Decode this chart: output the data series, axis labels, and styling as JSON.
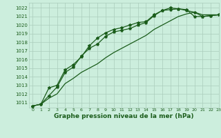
{
  "title": "Graphe pression niveau de la mer (hPa)",
  "bg_color": "#cceedd",
  "grid_color": "#aaccbb",
  "line_color": "#1a5c1a",
  "xlim": [
    -0.5,
    23
  ],
  "ylim": [
    1010.4,
    1022.6
  ],
  "xticks": [
    0,
    1,
    2,
    3,
    4,
    5,
    6,
    7,
    8,
    9,
    10,
    11,
    12,
    13,
    14,
    15,
    16,
    17,
    18,
    19,
    20,
    21,
    22,
    23
  ],
  "yticks": [
    1011,
    1012,
    1013,
    1014,
    1015,
    1016,
    1017,
    1018,
    1019,
    1020,
    1021,
    1022
  ],
  "series1_x": [
    0,
    1,
    2,
    3,
    4,
    5,
    6,
    7,
    8,
    9,
    10,
    11,
    12,
    13,
    14,
    15,
    16,
    17,
    18,
    19,
    20,
    21,
    22,
    23
  ],
  "series1_y": [
    1010.6,
    1010.8,
    1011.8,
    1012.8,
    1014.5,
    1015.1,
    1016.4,
    1017.3,
    1017.8,
    1018.7,
    1019.2,
    1019.4,
    1019.6,
    1020.0,
    1020.3,
    1021.1,
    1021.7,
    1021.8,
    1021.9,
    1021.8,
    1021.0,
    1021.0,
    1021.1,
    1021.2
  ],
  "series2_x": [
    0,
    1,
    2,
    3,
    4,
    5,
    6,
    7,
    8,
    9,
    10,
    11,
    12,
    13,
    14,
    15,
    16,
    17,
    18,
    19,
    20,
    21,
    22,
    23
  ],
  "series2_y": [
    1010.6,
    1010.8,
    1012.7,
    1013.0,
    1014.8,
    1015.4,
    1016.3,
    1017.6,
    1018.5,
    1019.1,
    1019.5,
    1019.7,
    1020.0,
    1020.3,
    1020.4,
    1021.2,
    1021.7,
    1022.0,
    1021.9,
    1021.7,
    1021.5,
    1021.0,
    1021.1,
    1021.2
  ],
  "series3_x": [
    0,
    1,
    2,
    3,
    4,
    5,
    6,
    7,
    8,
    9,
    10,
    11,
    12,
    13,
    14,
    15,
    16,
    17,
    18,
    19,
    20,
    21,
    22,
    23
  ],
  "series3_y": [
    1010.6,
    1010.8,
    1011.5,
    1012.0,
    1013.2,
    1013.8,
    1014.5,
    1015.0,
    1015.5,
    1016.2,
    1016.8,
    1017.3,
    1017.8,
    1018.3,
    1018.8,
    1019.5,
    1020.0,
    1020.5,
    1021.0,
    1021.3,
    1021.5,
    1021.2,
    1021.2,
    1021.2
  ],
  "ylabel_fontsize": 5.5,
  "xlabel_fontsize": 6.5,
  "lw": 0.9,
  "ms": 3.0
}
